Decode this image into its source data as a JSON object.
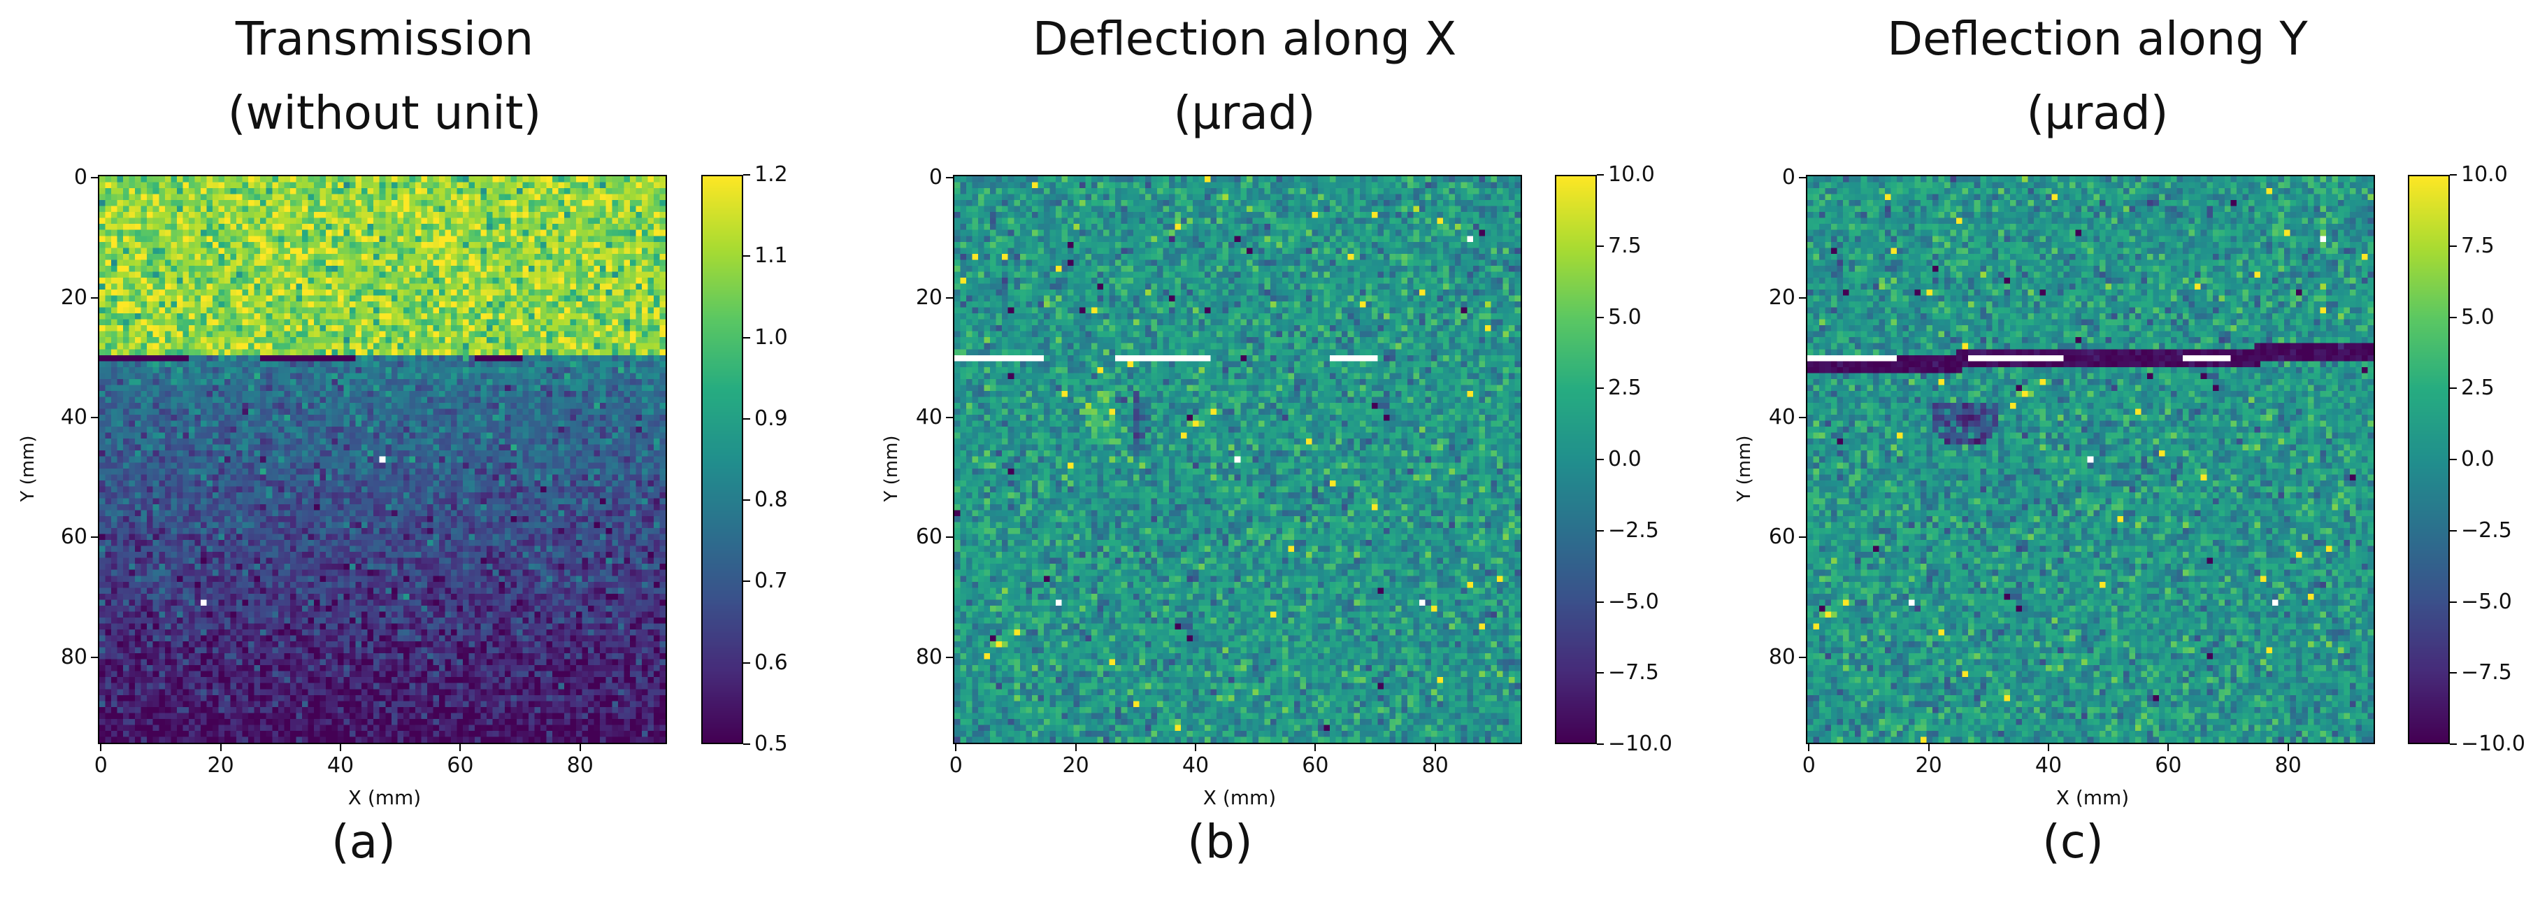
{
  "colors": {
    "viridis": [
      "#440154",
      "#472c7a",
      "#3b518b",
      "#2c718e",
      "#21908d",
      "#27ad81",
      "#5cc863",
      "#aadc32",
      "#fde725"
    ]
  },
  "chart_data": [
    {
      "type": "heatmap",
      "title_line1": "Transmission",
      "title_line2": "(without unit)",
      "panel_label": "(a)",
      "xlabel": "X (mm)",
      "ylabel": "Y (mm)",
      "xlim": [
        0,
        95
      ],
      "ylim": [
        95,
        0
      ],
      "x_ticks": [
        "0",
        "20",
        "40",
        "60",
        "80"
      ],
      "y_ticks": [
        "0",
        "20",
        "40",
        "60",
        "80"
      ],
      "colorbar_range": [
        0.5,
        1.2
      ],
      "colorbar_ticks": [
        "1.2",
        "1.1",
        "1.0",
        "0.9",
        "0.8",
        "0.7",
        "0.6",
        "0.5"
      ],
      "features": {
        "interface_y": 30,
        "value_above_interface": 1.08,
        "value_below_top": 0.78,
        "value_bottom": 0.52
      }
    },
    {
      "type": "heatmap",
      "title_line1": "Deflection along X",
      "title_line2": "(µrad)",
      "panel_label": "(b)",
      "xlabel": "X (mm)",
      "ylabel": "Y (mm)",
      "xlim": [
        0,
        95
      ],
      "ylim": [
        95,
        0
      ],
      "x_ticks": [
        "0",
        "20",
        "40",
        "60",
        "80"
      ],
      "y_ticks": [
        "0",
        "20",
        "40",
        "60",
        "80"
      ],
      "colorbar_range": [
        -10,
        10
      ],
      "colorbar_ticks": [
        "10.0",
        "7.5",
        "5.0",
        "2.5",
        "0.0",
        "−2.5",
        "−5.0",
        "−7.5",
        "−10.0"
      ],
      "features": {
        "interface_y": 30,
        "background_value": 0.5,
        "feature_center": [
          27,
          40
        ]
      }
    },
    {
      "type": "heatmap",
      "title_line1": "Deflection along Y",
      "title_line2": "(µrad)",
      "panel_label": "(c)",
      "xlabel": "X (mm)",
      "ylabel": "Y (mm)",
      "xlim": [
        0,
        95
      ],
      "ylim": [
        95,
        0
      ],
      "x_ticks": [
        "0",
        "20",
        "40",
        "60",
        "80"
      ],
      "y_ticks": [
        "0",
        "20",
        "40",
        "60",
        "80"
      ],
      "colorbar_range": [
        -10,
        10
      ],
      "colorbar_ticks": [
        "10.0",
        "7.5",
        "5.0",
        "2.5",
        "0.0",
        "−2.5",
        "−5.0",
        "−7.5",
        "−10.0"
      ],
      "features": {
        "interface_y": 31,
        "band_value": -9.5,
        "background_value": 0.5,
        "feature_center": [
          26,
          40
        ]
      }
    }
  ]
}
